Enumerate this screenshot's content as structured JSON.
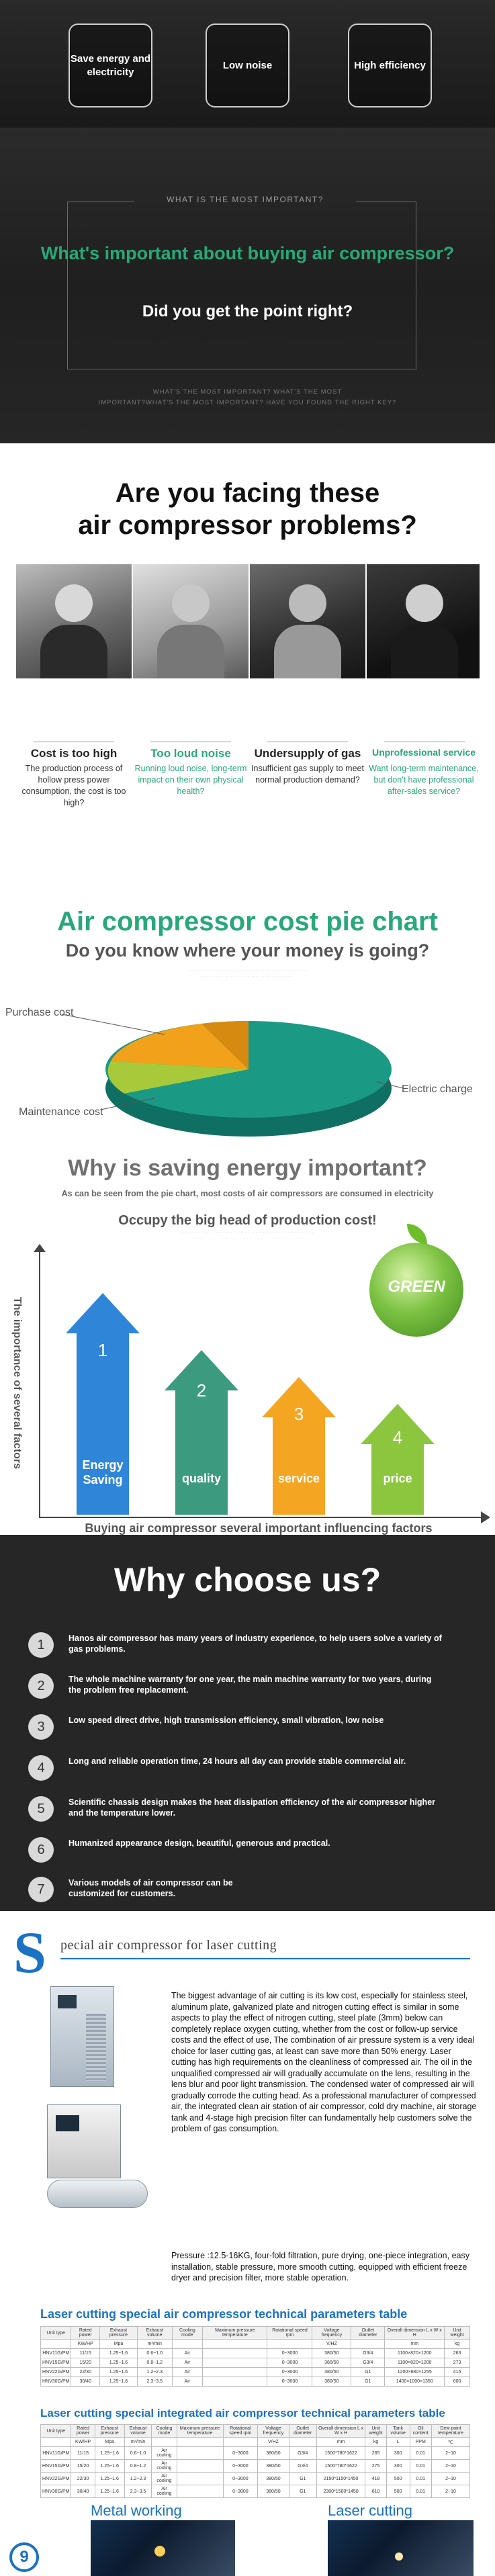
{
  "hero": {
    "features": [
      "Save energy and electricity",
      "Low noise",
      "High efficiency"
    ],
    "what_label": "WHAT IS THE MOST IMPORTANT?",
    "question": "What's important about buying air compressor?",
    "point": "Did you get the point right?",
    "tagline1": "WHAT'S THE MOST IMPORTANT? WHAT'S THE MOST",
    "tagline2": "IMPORTANT?WHAT'S THE MOST IMPORTANT? HAVE YOU FOUND THE RIGHT KEY?"
  },
  "problems": {
    "title_line1": "Are you facing these",
    "title_line2": "air compressor problems?",
    "items": [
      {
        "title": "Cost is too high",
        "desc": "The production process of hollow press power consumption, the cost is too high?",
        "color": "#111111"
      },
      {
        "title": "Too loud noise",
        "desc": "Running loud noise, long-term impact on their own physical health?",
        "color": "#28a87a"
      },
      {
        "title": "Undersupply of gas",
        "desc": "Insufficient gas supply to meet normal production demand?",
        "color": "#111111"
      },
      {
        "title": "Unprofessional service",
        "desc": "Want long-term maintenance, but don't have professional after-sales service?",
        "color": "#28a87a"
      }
    ]
  },
  "pie": {
    "title": "Air compressor cost pie chart",
    "subtitle": "Do you know where your money is going?",
    "labels": [
      "Purchase cost",
      "Electric charge",
      "Maintenance cost"
    ],
    "colors": {
      "electric": "#1a9a84",
      "purchase": "#f2a21a",
      "maintenance": "#a7c93a"
    }
  },
  "saving": {
    "title": "Why is saving energy important?",
    "subtitle": "As can be seen from the pie chart, most costs of air compressors are consumed in electricity",
    "subtitle2": "Occupy the big head of production cost!",
    "y_axis": "The importance of several factors",
    "x_axis": "Buying air compressor several important influencing factors",
    "globe_text": "GREEN",
    "arrows": [
      {
        "num": "1",
        "label": "Energy Saving",
        "color": "#2f86d8"
      },
      {
        "num": "2",
        "label": "quality",
        "color": "#3c9a7f"
      },
      {
        "num": "3",
        "label": "service",
        "color": "#f4a522"
      },
      {
        "num": "4",
        "label": "price",
        "color": "#8cc63f"
      }
    ]
  },
  "why": {
    "title": "Why choose us?",
    "items": [
      {
        "num": "1",
        "text": "Hanos air compressor has many years of industry experience, to help users solve a variety of gas problems."
      },
      {
        "num": "2",
        "text": "The whole machine warranty for one year, the main machine warranty for two years, during the problem free replacement."
      },
      {
        "num": "3",
        "text": "Low speed direct drive, high transmission efficiency, small vibration, low noise"
      },
      {
        "num": "4",
        "text": "Long and reliable operation time, 24 hours all day can provide stable commercial air."
      },
      {
        "num": "5",
        "text": "Scientific chassis design makes the heat dissipation efficiency of the air compressor higher and the temperature lower."
      },
      {
        "num": "6",
        "text": "Humanized appearance design, beautiful, generous and practical."
      },
      {
        "num": "7",
        "text": "Various models of air compressor can be customized for customers."
      }
    ]
  },
  "laser": {
    "title_initial": "S",
    "title_rest": "pecial air compressor for laser cutting",
    "desc": "The biggest advantage of air cutting is its low cost, especially for stainless steel, aluminum plate, galvanized plate and nitrogen cutting effect is similar in some aspects to play the effect of nitrogen cutting, steel plate (3mm) below can completely replace oxygen cutting, whether from the cost or follow-up service costs and the effect of use, The combination of air pressure system is a very ideal choice for laser cutting gas, at least can save more than 50% energy. Laser cutting has high requirements on the cleanliness of compressed air. The oil in the unqualified compressed air will gradually accumulate on the lens, resulting in the lens blur and poor light transmission. The condensed water of compressed air will gradually corrode the cutting head. As a professional manufacturer of compressed air, the integrated clean air station of air compressor, cold dry machine, air storage tank and 4-stage high precision filter can fundamentally help customers solve the problem of gas consumption.",
    "desc2": "Pressure :12.5-16KG, four-fold filtration, pure drying, one-piece integration, easy installation, stable pressure, more smooth cutting, equipped with efficient freeze dryer and precision filter, more stable operation.",
    "table1_title": "Laser cutting special air compressor technical parameters table",
    "table1_headers": [
      "Unit type",
      "Rated power",
      "Exhaust pressure",
      "Exhaust volume",
      "Cooling mode",
      "Maximum pressure temperature",
      "Rotational speed rpm",
      "Voltage frequency",
      "Outlet diameter",
      "Overall dimension L x W x H",
      "Unit weight"
    ],
    "table1_units": [
      "",
      "KW/HP",
      "Mpa",
      "m³/min",
      "",
      "",
      "",
      "V/HZ",
      "",
      "mm",
      "kg"
    ],
    "table1_rows": [
      [
        "HNV11G/PM",
        "11/15",
        "1.25~1.6",
        "0.6~1.0",
        "Air",
        "",
        "0~3000",
        "380/50",
        "G3/4",
        "1100×820×1200",
        "263"
      ],
      [
        "HNV15G/PM",
        "15/20",
        "1.25~1.6",
        "0.8~1.2",
        "Air",
        "",
        "0~3000",
        "380/50",
        "G3/4",
        "1100×820×1200",
        "273"
      ],
      [
        "HNV22G/PM",
        "22/30",
        "1.25~1.6",
        "1.2~2.3",
        "Air",
        "",
        "0~3000",
        "380/50",
        "G1",
        "1200×880×1255",
        "415"
      ],
      [
        "HNV30G/PM",
        "30/40",
        "1.25~1.6",
        "2.3~3.5",
        "Air",
        "",
        "0~3000",
        "380/50",
        "G1",
        "1400×1000×1350",
        "600"
      ]
    ],
    "table2_title": "Laser cutting special integrated air compressor technical parameters table",
    "table2_headers": [
      "Unit type",
      "Rated power",
      "Exhaust pressure",
      "Exhaust volume",
      "Cooling mode",
      "Maximum pressure temperature",
      "Rotational speed rpm",
      "Voltage frequency",
      "Outlet diameter",
      "Overall dimension L x W x H",
      "Unit weight",
      "Tank volume",
      "Oil content",
      "Dew point temperature"
    ],
    "table2_units": [
      "",
      "KW/HP",
      "Mpa",
      "m³/min",
      "",
      "",
      "",
      "V/HZ",
      "",
      "mm",
      "kg",
      "L",
      "PPM",
      "℃"
    ],
    "table2_rows": [
      [
        "HNV11G/PM",
        "11/15",
        "1.25~1.6",
        "0.6~1.0",
        "Air cooling",
        "",
        "0~3000",
        "380/50",
        "G3/4",
        "1500*780*1622",
        "265",
        "300",
        "0.01",
        "2~10"
      ],
      [
        "HNV15G/PM",
        "15/20",
        "1.25~1.6",
        "0.8~1.2",
        "Air cooling",
        "",
        "0~3000",
        "380/50",
        "G3/4",
        "1500*780*1622",
        "275",
        "300",
        "0.01",
        "2~10"
      ],
      [
        "HNV22G/PM",
        "22/30",
        "1.25~1.6",
        "1.2~2.3",
        "Air cooling",
        "",
        "0~3000",
        "380/50",
        "G1",
        "2150*1150*1450",
        "418",
        "500",
        "0.01",
        "2~10"
      ],
      [
        "HNV30G/PM",
        "30/40",
        "1.25~1.6",
        "2.3~3.5",
        "Air cooling",
        "",
        "0~3000",
        "380/50",
        "G1",
        "2300*1500*1450",
        "610",
        "500",
        "0.01",
        "2~10"
      ]
    ],
    "photo_labels": [
      "Metal working",
      "Laser cutting"
    ],
    "page_number": "9"
  }
}
